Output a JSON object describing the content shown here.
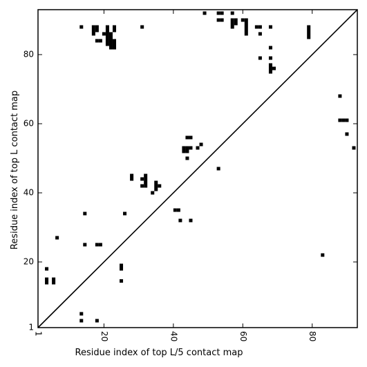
{
  "chart_data": {
    "type": "heatmap",
    "title": "",
    "xlabel": "Residue index of top L/5 contact map",
    "ylabel": "Residue index of top L contact map",
    "xlim": [
      1,
      93
    ],
    "ylim": [
      1,
      93
    ],
    "xticks": [
      1,
      20,
      40,
      60,
      80
    ],
    "yticks": [
      1,
      20,
      40,
      60,
      80
    ],
    "x_tick_rotation": -90,
    "diagonal": true,
    "grid": false,
    "colors": {
      "cell": "#000000",
      "axes": "#000000",
      "background": "#ffffff"
    },
    "cells": [
      [
        13.5,
        88
      ],
      [
        17,
        88
      ],
      [
        17,
        87
      ],
      [
        17,
        86
      ],
      [
        18,
        88
      ],
      [
        18,
        87
      ],
      [
        18,
        84
      ],
      [
        19,
        84
      ],
      [
        20,
        86
      ],
      [
        21,
        88
      ],
      [
        21,
        87
      ],
      [
        21,
        86
      ],
      [
        21,
        85
      ],
      [
        21,
        84
      ],
      [
        21,
        83
      ],
      [
        22,
        86
      ],
      [
        22,
        85
      ],
      [
        22,
        84
      ],
      [
        22,
        83
      ],
      [
        22,
        82
      ],
      [
        23,
        84
      ],
      [
        23,
        83
      ],
      [
        23,
        82
      ],
      [
        23,
        88
      ],
      [
        23,
        87
      ],
      [
        31,
        88
      ],
      [
        49,
        92
      ],
      [
        53,
        92
      ],
      [
        54,
        92
      ],
      [
        53,
        90
      ],
      [
        54,
        90
      ],
      [
        57,
        92
      ],
      [
        57,
        90
      ],
      [
        57,
        89
      ],
      [
        57,
        88
      ],
      [
        58,
        90
      ],
      [
        58,
        89
      ],
      [
        60,
        90
      ],
      [
        61,
        90
      ],
      [
        61,
        89
      ],
      [
        61,
        88
      ],
      [
        61,
        87
      ],
      [
        61,
        86
      ],
      [
        64,
        88
      ],
      [
        65,
        88
      ],
      [
        65,
        86
      ],
      [
        65,
        79
      ],
      [
        68,
        88
      ],
      [
        68,
        82
      ],
      [
        68,
        79
      ],
      [
        68,
        77
      ],
      [
        68,
        76
      ],
      [
        68,
        75
      ],
      [
        69,
        76
      ],
      [
        79,
        88
      ],
      [
        79,
        87
      ],
      [
        79,
        86
      ],
      [
        79,
        85
      ],
      [
        88,
        68
      ],
      [
        88,
        61
      ],
      [
        89,
        61
      ],
      [
        90,
        61
      ],
      [
        90,
        57
      ],
      [
        92,
        53
      ],
      [
        83,
        22
      ],
      [
        28,
        45
      ],
      [
        28,
        44
      ],
      [
        31,
        44
      ],
      [
        31,
        42
      ],
      [
        32,
        45
      ],
      [
        32,
        44
      ],
      [
        32,
        43
      ],
      [
        32,
        42
      ],
      [
        34,
        40
      ],
      [
        35,
        43
      ],
      [
        35,
        42
      ],
      [
        35,
        41
      ],
      [
        36,
        42
      ],
      [
        40.5,
        35
      ],
      [
        41.5,
        35
      ],
      [
        42,
        32
      ],
      [
        45,
        32
      ],
      [
        43,
        53
      ],
      [
        43,
        52
      ],
      [
        44,
        53
      ],
      [
        44,
        52
      ],
      [
        45,
        53
      ],
      [
        44,
        56
      ],
      [
        45,
        56
      ],
      [
        44,
        50
      ],
      [
        47,
        53
      ],
      [
        48,
        54
      ],
      [
        53,
        47
      ],
      [
        14.5,
        34
      ],
      [
        26,
        34
      ],
      [
        6.5,
        27
      ],
      [
        14.5,
        25
      ],
      [
        18,
        25
      ],
      [
        19,
        25
      ],
      [
        25,
        19
      ],
      [
        25,
        18
      ],
      [
        25,
        14.5
      ],
      [
        3.5,
        18
      ],
      [
        3.5,
        15
      ],
      [
        3.5,
        14
      ],
      [
        5.5,
        15
      ],
      [
        5.5,
        14
      ],
      [
        13.5,
        5
      ],
      [
        13.5,
        3
      ],
      [
        18,
        3
      ]
    ]
  }
}
